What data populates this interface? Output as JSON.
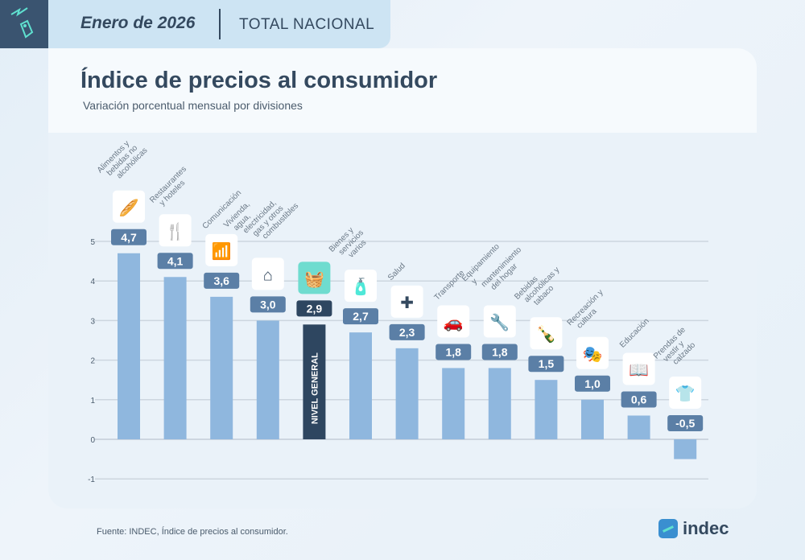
{
  "header": {
    "period": "Enero de 2026",
    "scope": "TOTAL NACIONAL"
  },
  "title": "Índice de precios al consumidor",
  "subtitle": "Variación porcentual mensual por divisiones",
  "source": "Fuente: INDEC, Índice de precios al consumidor.",
  "brand": "indec",
  "colors": {
    "bar": "#8fb7de",
    "highlight_bar": "#2e4660",
    "value_label": "#5b7fa6",
    "highlight_icon_bg": "#6fdccf",
    "text": "#34495f"
  },
  "chart_data": {
    "type": "bar",
    "title": "Índice de precios al consumidor",
    "subtitle": "Variación porcentual mensual por divisiones",
    "categories": [
      "Alimentos y bebidas no alcohólicas",
      "Restaurantes y hoteles",
      "Comunicación",
      "Vivienda, agua, electricidad, gas y otros combustibles",
      "NIVEL GENERAL",
      "Bienes y servicios varios",
      "Salud",
      "Transporte",
      "Equipamiento y mantenimiento del hogar",
      "Bebidas alcohólicas y tabaco",
      "Recreación y cultura",
      "Educación",
      "Prendas de vestir y calzado"
    ],
    "values": [
      4.7,
      4.1,
      3.6,
      3.0,
      2.9,
      2.7,
      2.3,
      1.8,
      1.8,
      1.5,
      1.0,
      0.6,
      -0.5
    ],
    "value_labels": [
      "4,7",
      "4,1",
      "3,6",
      "3,0",
      "2,9",
      "2,7",
      "2,3",
      "1,8",
      "1,8",
      "1,5",
      "1,0",
      "0,6",
      "-0,5"
    ],
    "icons": [
      "food-icon",
      "restaurant-hotel-icon",
      "wifi-icon",
      "house-energy-icon",
      "basket-icon",
      "personal-care-icon",
      "health-cross-icon",
      "car-icon",
      "tools-icon",
      "bottle-icon",
      "theater-masks-icon",
      "book-icon",
      "tshirt-icon"
    ],
    "highlight": "NIVEL GENERAL",
    "ylim": [
      -1,
      5
    ],
    "yticks": [
      -1,
      0,
      1,
      2,
      3,
      4,
      5
    ],
    "ytick_labels": [
      "-1",
      "0",
      "1",
      "2",
      "3",
      "4",
      "5"
    ],
    "grid": true,
    "xlabel": "",
    "ylabel": ""
  }
}
